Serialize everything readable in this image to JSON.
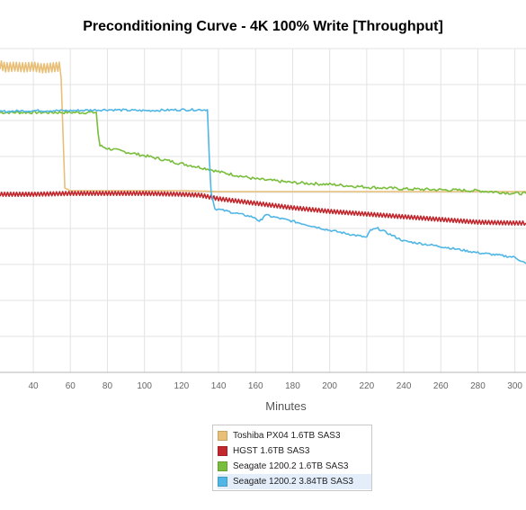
{
  "chart_data": {
    "type": "line",
    "title": "Preconditioning Curve - 4K 100% Write [Throughput]",
    "xlabel": "Minutes",
    "ylabel": "",
    "x_tick_labels": [
      "40",
      "60",
      "80",
      "100",
      "120",
      "140",
      "160",
      "180",
      "200",
      "220",
      "240",
      "260",
      "280",
      "300"
    ],
    "x_ticks": [
      40,
      60,
      80,
      100,
      120,
      140,
      160,
      180,
      200,
      220,
      240,
      260,
      280,
      300
    ],
    "xlim": [
      22,
      306
    ],
    "ylim": [
      0,
      360
    ],
    "grid": true,
    "legend_position": "bottom-center",
    "series": [
      {
        "name": "Toshiba PX04 1.6TB SAS3",
        "color": "#e9bf78",
        "points": [
          [
            22,
            342
          ],
          [
            25,
            339
          ],
          [
            30,
            340
          ],
          [
            35,
            339
          ],
          [
            40,
            340
          ],
          [
            45,
            338
          ],
          [
            50,
            339
          ],
          [
            54,
            340
          ],
          [
            55,
            327
          ],
          [
            57,
            205
          ],
          [
            60,
            202
          ],
          [
            80,
            202
          ],
          [
            100,
            202
          ],
          [
            120,
            202
          ],
          [
            140,
            201
          ],
          [
            160,
            201
          ],
          [
            180,
            201
          ],
          [
            200,
            201
          ],
          [
            220,
            201
          ],
          [
            240,
            201
          ],
          [
            260,
            201
          ],
          [
            280,
            201
          ],
          [
            300,
            201
          ],
          [
            306,
            201
          ]
        ]
      },
      {
        "name": "HGST 1.6TB SAS3",
        "color": "#c1272d",
        "points": [
          [
            22,
            198
          ],
          [
            40,
            198
          ],
          [
            60,
            199
          ],
          [
            80,
            199
          ],
          [
            100,
            199
          ],
          [
            120,
            198
          ],
          [
            130,
            197
          ],
          [
            140,
            193
          ],
          [
            160,
            188
          ],
          [
            180,
            183
          ],
          [
            200,
            179
          ],
          [
            220,
            176
          ],
          [
            240,
            173
          ],
          [
            260,
            170
          ],
          [
            280,
            167
          ],
          [
            300,
            166
          ],
          [
            306,
            166
          ]
        ]
      },
      {
        "name": "Seagate 1200.2 1.6TB SAS3",
        "color": "#78bd3b",
        "points": [
          [
            22,
            289
          ],
          [
            40,
            289
          ],
          [
            60,
            289
          ],
          [
            74,
            289
          ],
          [
            75,
            265
          ],
          [
            76,
            252
          ],
          [
            80,
            249
          ],
          [
            100,
            241
          ],
          [
            120,
            232
          ],
          [
            135,
            226
          ],
          [
            140,
            223
          ],
          [
            160,
            215
          ],
          [
            180,
            211
          ],
          [
            200,
            209
          ],
          [
            220,
            206
          ],
          [
            240,
            204
          ],
          [
            260,
            203
          ],
          [
            280,
            202
          ],
          [
            300,
            199
          ],
          [
            306,
            199
          ]
        ]
      },
      {
        "name": "Seagate 1200.2 3.84TB SAS3",
        "color": "#4fb6e5",
        "points": [
          [
            22,
            290
          ],
          [
            40,
            291
          ],
          [
            60,
            291
          ],
          [
            80,
            292
          ],
          [
            100,
            291
          ],
          [
            120,
            292
          ],
          [
            134,
            292
          ],
          [
            135,
            238
          ],
          [
            136,
            200
          ],
          [
            138,
            182
          ],
          [
            145,
            179
          ],
          [
            160,
            172
          ],
          [
            162,
            167
          ],
          [
            165,
            175
          ],
          [
            180,
            168
          ],
          [
            200,
            158
          ],
          [
            220,
            150
          ],
          [
            222,
            158
          ],
          [
            226,
            160
          ],
          [
            240,
            146
          ],
          [
            260,
            140
          ],
          [
            280,
            133
          ],
          [
            300,
            128
          ],
          [
            306,
            121
          ]
        ]
      }
    ]
  }
}
